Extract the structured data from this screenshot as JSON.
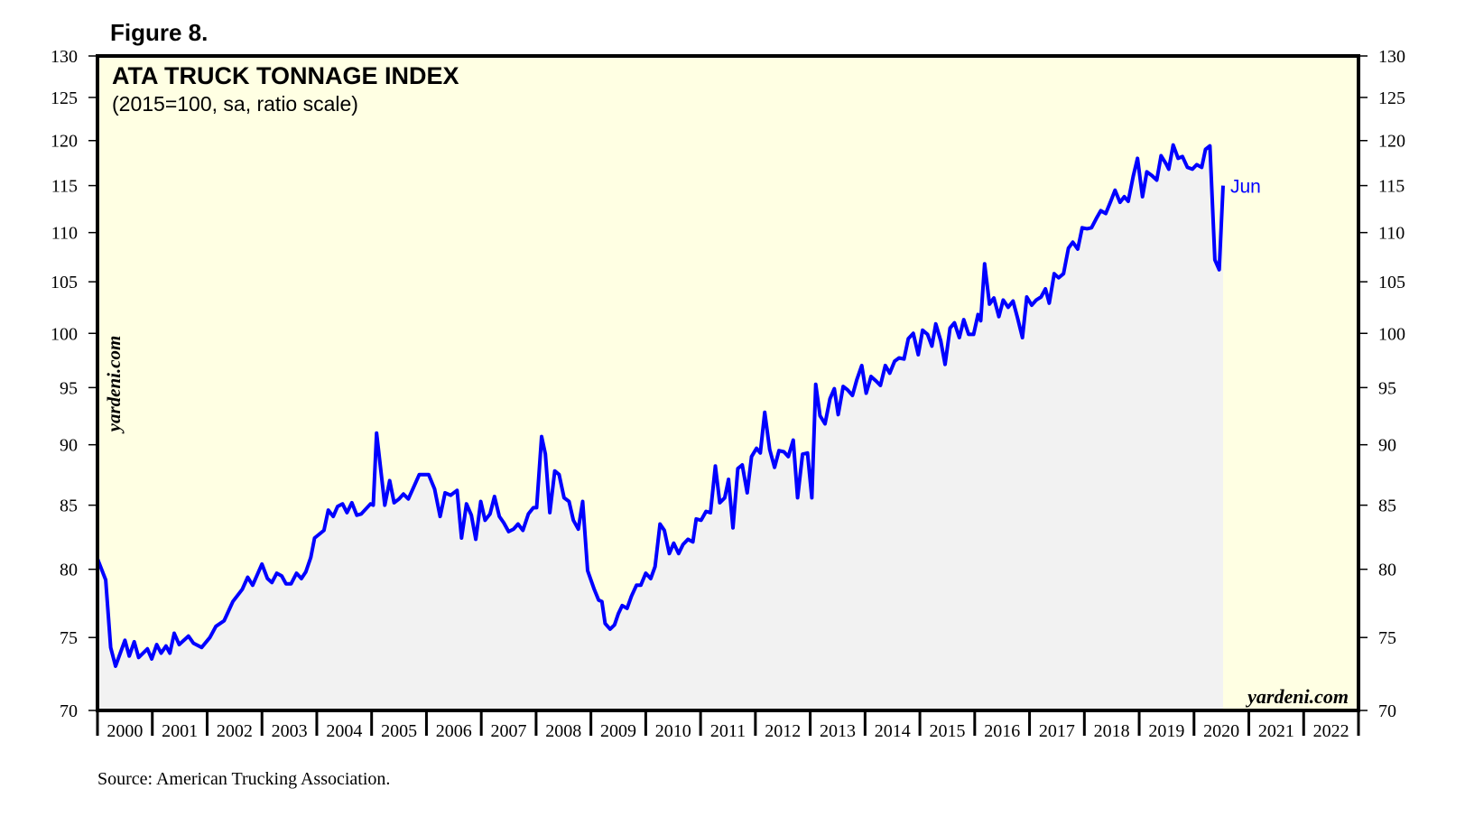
{
  "figure_label": "Figure 8.",
  "source": "Source: American Trucking Association.",
  "watermark": "yardeni.com",
  "colors": {
    "line": "#0000FF",
    "plot_background": "#FFFFE3",
    "area_fill": "#F2F2F2",
    "axis": "#000000"
  },
  "chart_data": {
    "type": "area",
    "title": "ATA TRUCK TONNAGE INDEX",
    "subtitle": "(2015=100, sa, ratio scale)",
    "y_scale": "log",
    "ylim": [
      70,
      130
    ],
    "xlim": [
      2000,
      2023
    ],
    "grid": false,
    "y_ticks": [
      70,
      75,
      80,
      85,
      90,
      95,
      100,
      105,
      110,
      115,
      120,
      125,
      130
    ],
    "x_tick_labels": [
      "2000",
      "2001",
      "2002",
      "2003",
      "2004",
      "2005",
      "2006",
      "2007",
      "2008",
      "2009",
      "2010",
      "2011",
      "2012",
      "2013",
      "2014",
      "2015",
      "2016",
      "2017",
      "2018",
      "2019",
      "2020",
      "2021",
      "2022"
    ],
    "annotation": "Jun",
    "points": [
      [
        2000.0,
        80.8
      ],
      [
        2000.15,
        79.2
      ],
      [
        2000.24,
        74.3
      ],
      [
        2000.33,
        73.0
      ],
      [
        2000.5,
        74.8
      ],
      [
        2000.58,
        73.7
      ],
      [
        2000.67,
        74.7
      ],
      [
        2000.75,
        73.6
      ],
      [
        2000.91,
        74.2
      ],
      [
        2000.99,
        73.5
      ],
      [
        2001.08,
        74.5
      ],
      [
        2001.16,
        73.9
      ],
      [
        2001.25,
        74.4
      ],
      [
        2001.32,
        73.9
      ],
      [
        2001.4,
        75.3
      ],
      [
        2001.49,
        74.5
      ],
      [
        2001.66,
        75.1
      ],
      [
        2001.75,
        74.6
      ],
      [
        2001.9,
        74.3
      ],
      [
        2002.05,
        75.0
      ],
      [
        2002.16,
        75.8
      ],
      [
        2002.31,
        76.2
      ],
      [
        2002.47,
        77.6
      ],
      [
        2002.64,
        78.5
      ],
      [
        2002.74,
        79.4
      ],
      [
        2002.83,
        78.8
      ],
      [
        2003.0,
        80.4
      ],
      [
        2003.1,
        79.3
      ],
      [
        2003.18,
        79.0
      ],
      [
        2003.27,
        79.7
      ],
      [
        2003.36,
        79.5
      ],
      [
        2003.44,
        78.9
      ],
      [
        2003.53,
        78.9
      ],
      [
        2003.63,
        79.7
      ],
      [
        2003.72,
        79.3
      ],
      [
        2003.8,
        79.8
      ],
      [
        2003.89,
        80.9
      ],
      [
        2003.96,
        82.4
      ],
      [
        2004.13,
        83.0
      ],
      [
        2004.21,
        84.6
      ],
      [
        2004.3,
        84.1
      ],
      [
        2004.38,
        84.9
      ],
      [
        2004.47,
        85.1
      ],
      [
        2004.55,
        84.4
      ],
      [
        2004.64,
        85.2
      ],
      [
        2004.73,
        84.2
      ],
      [
        2004.81,
        84.3
      ],
      [
        2004.98,
        85.1
      ],
      [
        2005.03,
        85.0
      ],
      [
        2005.09,
        91.0
      ],
      [
        2005.24,
        85.0
      ],
      [
        2005.33,
        87.0
      ],
      [
        2005.41,
        85.2
      ],
      [
        2005.5,
        85.5
      ],
      [
        2005.58,
        85.9
      ],
      [
        2005.67,
        85.5
      ],
      [
        2005.75,
        86.3
      ],
      [
        2005.87,
        87.5
      ],
      [
        2006.04,
        87.5
      ],
      [
        2006.15,
        86.3
      ],
      [
        2006.25,
        84.1
      ],
      [
        2006.34,
        86.0
      ],
      [
        2006.44,
        85.8
      ],
      [
        2006.56,
        86.2
      ],
      [
        2006.64,
        82.4
      ],
      [
        2006.73,
        85.1
      ],
      [
        2006.82,
        84.2
      ],
      [
        2006.9,
        82.3
      ],
      [
        2006.99,
        85.3
      ],
      [
        2007.07,
        83.8
      ],
      [
        2007.16,
        84.3
      ],
      [
        2007.24,
        85.7
      ],
      [
        2007.33,
        84.1
      ],
      [
        2007.41,
        83.6
      ],
      [
        2007.5,
        82.9
      ],
      [
        2007.59,
        83.1
      ],
      [
        2007.67,
        83.5
      ],
      [
        2007.76,
        83.0
      ],
      [
        2007.86,
        84.3
      ],
      [
        2007.95,
        84.8
      ],
      [
        2008.01,
        84.8
      ],
      [
        2008.1,
        90.7
      ],
      [
        2008.17,
        89.2
      ],
      [
        2008.25,
        84.4
      ],
      [
        2008.34,
        87.8
      ],
      [
        2008.42,
        87.5
      ],
      [
        2008.51,
        85.6
      ],
      [
        2008.6,
        85.3
      ],
      [
        2008.68,
        83.8
      ],
      [
        2008.77,
        83.1
      ],
      [
        2008.85,
        85.3
      ],
      [
        2008.94,
        79.9
      ],
      [
        2009.06,
        78.5
      ],
      [
        2009.14,
        77.7
      ],
      [
        2009.2,
        77.6
      ],
      [
        2009.26,
        76.0
      ],
      [
        2009.35,
        75.6
      ],
      [
        2009.43,
        75.9
      ],
      [
        2009.5,
        76.7
      ],
      [
        2009.57,
        77.3
      ],
      [
        2009.66,
        77.1
      ],
      [
        2009.74,
        78.0
      ],
      [
        2009.83,
        78.8
      ],
      [
        2009.91,
        78.8
      ],
      [
        2010.0,
        79.7
      ],
      [
        2010.09,
        79.3
      ],
      [
        2010.17,
        80.2
      ],
      [
        2010.26,
        83.5
      ],
      [
        2010.34,
        83.0
      ],
      [
        2010.43,
        81.2
      ],
      [
        2010.51,
        82.0
      ],
      [
        2010.6,
        81.2
      ],
      [
        2010.68,
        81.9
      ],
      [
        2010.77,
        82.3
      ],
      [
        2010.86,
        82.1
      ],
      [
        2010.92,
        83.9
      ],
      [
        2011.01,
        83.8
      ],
      [
        2011.1,
        84.5
      ],
      [
        2011.18,
        84.4
      ],
      [
        2011.27,
        88.2
      ],
      [
        2011.35,
        85.2
      ],
      [
        2011.44,
        85.6
      ],
      [
        2011.51,
        87.1
      ],
      [
        2011.59,
        83.2
      ],
      [
        2011.68,
        88.0
      ],
      [
        2011.76,
        88.3
      ],
      [
        2011.85,
        86.0
      ],
      [
        2011.93,
        89.0
      ],
      [
        2012.02,
        89.7
      ],
      [
        2012.09,
        89.3
      ],
      [
        2012.17,
        92.8
      ],
      [
        2012.26,
        89.6
      ],
      [
        2012.35,
        88.1
      ],
      [
        2012.43,
        89.5
      ],
      [
        2012.52,
        89.4
      ],
      [
        2012.6,
        89.0
      ],
      [
        2012.69,
        90.4
      ],
      [
        2012.77,
        85.6
      ],
      [
        2012.86,
        89.2
      ],
      [
        2012.95,
        89.3
      ],
      [
        2013.03,
        85.6
      ],
      [
        2013.1,
        95.3
      ],
      [
        2013.18,
        92.5
      ],
      [
        2013.27,
        91.8
      ],
      [
        2013.36,
        94.0
      ],
      [
        2013.44,
        94.9
      ],
      [
        2013.51,
        92.6
      ],
      [
        2013.6,
        95.1
      ],
      [
        2013.68,
        94.8
      ],
      [
        2013.77,
        94.3
      ],
      [
        2013.85,
        95.7
      ],
      [
        2013.94,
        97.0
      ],
      [
        2014.02,
        94.5
      ],
      [
        2014.11,
        96.0
      ],
      [
        2014.2,
        95.6
      ],
      [
        2014.28,
        95.2
      ],
      [
        2014.37,
        97.0
      ],
      [
        2014.45,
        96.3
      ],
      [
        2014.54,
        97.4
      ],
      [
        2014.62,
        97.7
      ],
      [
        2014.71,
        97.6
      ],
      [
        2014.79,
        99.5
      ],
      [
        2014.88,
        100.0
      ],
      [
        2014.97,
        98.0
      ],
      [
        2015.05,
        100.3
      ],
      [
        2015.14,
        99.9
      ],
      [
        2015.22,
        98.8
      ],
      [
        2015.29,
        100.9
      ],
      [
        2015.38,
        99.3
      ],
      [
        2015.46,
        97.1
      ],
      [
        2015.55,
        100.5
      ],
      [
        2015.63,
        101.0
      ],
      [
        2015.72,
        99.6
      ],
      [
        2015.8,
        101.3
      ],
      [
        2015.89,
        99.9
      ],
      [
        2015.98,
        99.9
      ],
      [
        2016.06,
        101.8
      ],
      [
        2016.11,
        101.2
      ],
      [
        2016.18,
        106.8
      ],
      [
        2016.27,
        102.8
      ],
      [
        2016.35,
        103.4
      ],
      [
        2016.44,
        101.6
      ],
      [
        2016.52,
        103.2
      ],
      [
        2016.61,
        102.5
      ],
      [
        2016.7,
        103.1
      ],
      [
        2016.78,
        101.5
      ],
      [
        2016.87,
        99.6
      ],
      [
        2016.95,
        103.5
      ],
      [
        2017.04,
        102.7
      ],
      [
        2017.12,
        103.2
      ],
      [
        2017.21,
        103.5
      ],
      [
        2017.29,
        104.3
      ],
      [
        2017.36,
        102.9
      ],
      [
        2017.45,
        105.8
      ],
      [
        2017.53,
        105.4
      ],
      [
        2017.62,
        105.8
      ],
      [
        2017.71,
        108.4
      ],
      [
        2017.79,
        109.0
      ],
      [
        2017.88,
        108.3
      ],
      [
        2017.96,
        110.5
      ],
      [
        2018.05,
        110.4
      ],
      [
        2018.13,
        110.5
      ],
      [
        2018.22,
        111.5
      ],
      [
        2018.3,
        112.3
      ],
      [
        2018.39,
        112.0
      ],
      [
        2018.48,
        113.3
      ],
      [
        2018.56,
        114.5
      ],
      [
        2018.65,
        113.2
      ],
      [
        2018.73,
        113.8
      ],
      [
        2018.8,
        113.3
      ],
      [
        2018.89,
        116.0
      ],
      [
        2018.97,
        118.0
      ],
      [
        2019.06,
        113.8
      ],
      [
        2019.14,
        116.5
      ],
      [
        2019.23,
        116.1
      ],
      [
        2019.32,
        115.6
      ],
      [
        2019.4,
        118.3
      ],
      [
        2019.49,
        117.4
      ],
      [
        2019.54,
        116.8
      ],
      [
        2019.62,
        119.5
      ],
      [
        2019.71,
        118.0
      ],
      [
        2019.79,
        118.2
      ],
      [
        2019.88,
        117.0
      ],
      [
        2019.97,
        116.8
      ],
      [
        2020.05,
        117.3
      ],
      [
        2020.14,
        117.0
      ],
      [
        2020.21,
        119.0
      ],
      [
        2020.29,
        119.4
      ],
      [
        2020.38,
        107.2
      ],
      [
        2020.46,
        106.2
      ],
      [
        2020.53,
        115.0
      ]
    ]
  }
}
